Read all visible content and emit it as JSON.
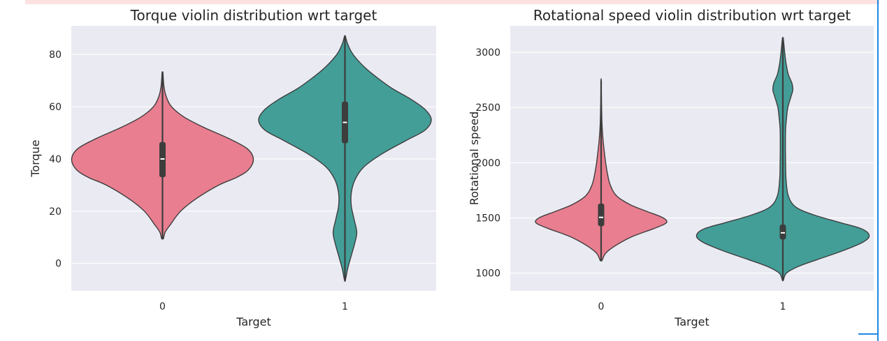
{
  "chart_data": [
    {
      "type": "violin",
      "title": "Torque violin distribution wrt target",
      "xlabel": "Target",
      "ylabel": "Torque",
      "categories": [
        "0",
        "1"
      ],
      "yticks": [
        0,
        20,
        40,
        60,
        80
      ],
      "ylim": [
        -10.5,
        91
      ],
      "colors": [
        "#e87e8f",
        "#439e98"
      ],
      "violins": [
        {
          "category": "0",
          "min": 9.5,
          "max": 73,
          "q1": 33,
          "median": 40,
          "q3": 46.5,
          "profile": [
            [
              9.5,
              0.01
            ],
            [
              12,
              0.03
            ],
            [
              15,
              0.09
            ],
            [
              20,
              0.2
            ],
            [
              25,
              0.38
            ],
            [
              30,
              0.62
            ],
            [
              33,
              0.82
            ],
            [
              36,
              0.95
            ],
            [
              40,
              1.0
            ],
            [
              44,
              0.93
            ],
            [
              48,
              0.72
            ],
            [
              52,
              0.46
            ],
            [
              56,
              0.24
            ],
            [
              60,
              0.1
            ],
            [
              64,
              0.04
            ],
            [
              68,
              0.015
            ],
            [
              73,
              0.005
            ]
          ]
        },
        {
          "category": "1",
          "min": -6.5,
          "max": 87,
          "q1": 46,
          "median": 54,
          "q3": 62,
          "profile": [
            [
              -6.5,
              0.005
            ],
            [
              -2,
              0.03
            ],
            [
              3,
              0.07
            ],
            [
              8,
              0.11
            ],
            [
              12,
              0.13
            ],
            [
              17,
              0.1
            ],
            [
              22,
              0.07
            ],
            [
              27,
              0.07
            ],
            [
              32,
              0.11
            ],
            [
              37,
              0.21
            ],
            [
              42,
              0.41
            ],
            [
              47,
              0.67
            ],
            [
              51,
              0.88
            ],
            [
              55,
              0.95
            ],
            [
              59,
              0.88
            ],
            [
              63,
              0.72
            ],
            [
              67,
              0.52
            ],
            [
              71,
              0.36
            ],
            [
              75,
              0.22
            ],
            [
              80,
              0.09
            ],
            [
              84,
              0.03
            ],
            [
              87,
              0.005
            ]
          ]
        }
      ]
    },
    {
      "type": "violin",
      "title": "Rotational speed violin distribution wrt target",
      "xlabel": "Target",
      "ylabel": "Rotational speed",
      "categories": [
        "0",
        "1"
      ],
      "yticks": [
        1000,
        1500,
        2000,
        2500,
        3000
      ],
      "ylim": [
        840,
        3240
      ],
      "colors": [
        "#e87e8f",
        "#439e98"
      ],
      "violins": [
        {
          "category": "0",
          "min": 1115,
          "max": 2745,
          "q1": 1425,
          "median": 1505,
          "q3": 1630,
          "profile": [
            [
              1115,
              0.01
            ],
            [
              1180,
              0.05
            ],
            [
              1250,
              0.16
            ],
            [
              1330,
              0.34
            ],
            [
              1400,
              0.57
            ],
            [
              1445,
              0.7
            ],
            [
              1475,
              0.72
            ],
            [
              1510,
              0.66
            ],
            [
              1560,
              0.5
            ],
            [
              1620,
              0.32
            ],
            [
              1700,
              0.17
            ],
            [
              1800,
              0.1
            ],
            [
              1900,
              0.07
            ],
            [
              2000,
              0.05
            ],
            [
              2100,
              0.035
            ],
            [
              2200,
              0.022
            ],
            [
              2300,
              0.013
            ],
            [
              2400,
              0.008
            ],
            [
              2550,
              0.004
            ],
            [
              2745,
              0.001
            ]
          ]
        },
        {
          "category": "1",
          "min": 935,
          "max": 3125,
          "q1": 1305,
          "median": 1365,
          "q3": 1440,
          "profile": [
            [
              935,
              0.005
            ],
            [
              1000,
              0.04
            ],
            [
              1060,
              0.17
            ],
            [
              1120,
              0.37
            ],
            [
              1200,
              0.65
            ],
            [
              1280,
              0.88
            ],
            [
              1340,
              0.95
            ],
            [
              1400,
              0.87
            ],
            [
              1460,
              0.62
            ],
            [
              1530,
              0.33
            ],
            [
              1600,
              0.14
            ],
            [
              1700,
              0.06
            ],
            [
              1850,
              0.035
            ],
            [
              2000,
              0.03
            ],
            [
              2150,
              0.028
            ],
            [
              2300,
              0.03
            ],
            [
              2400,
              0.04
            ],
            [
              2500,
              0.055
            ],
            [
              2600,
              0.09
            ],
            [
              2660,
              0.11
            ],
            [
              2720,
              0.1
            ],
            [
              2800,
              0.06
            ],
            [
              2900,
              0.035
            ],
            [
              3000,
              0.02
            ],
            [
              3125,
              0.005
            ]
          ]
        }
      ]
    }
  ]
}
